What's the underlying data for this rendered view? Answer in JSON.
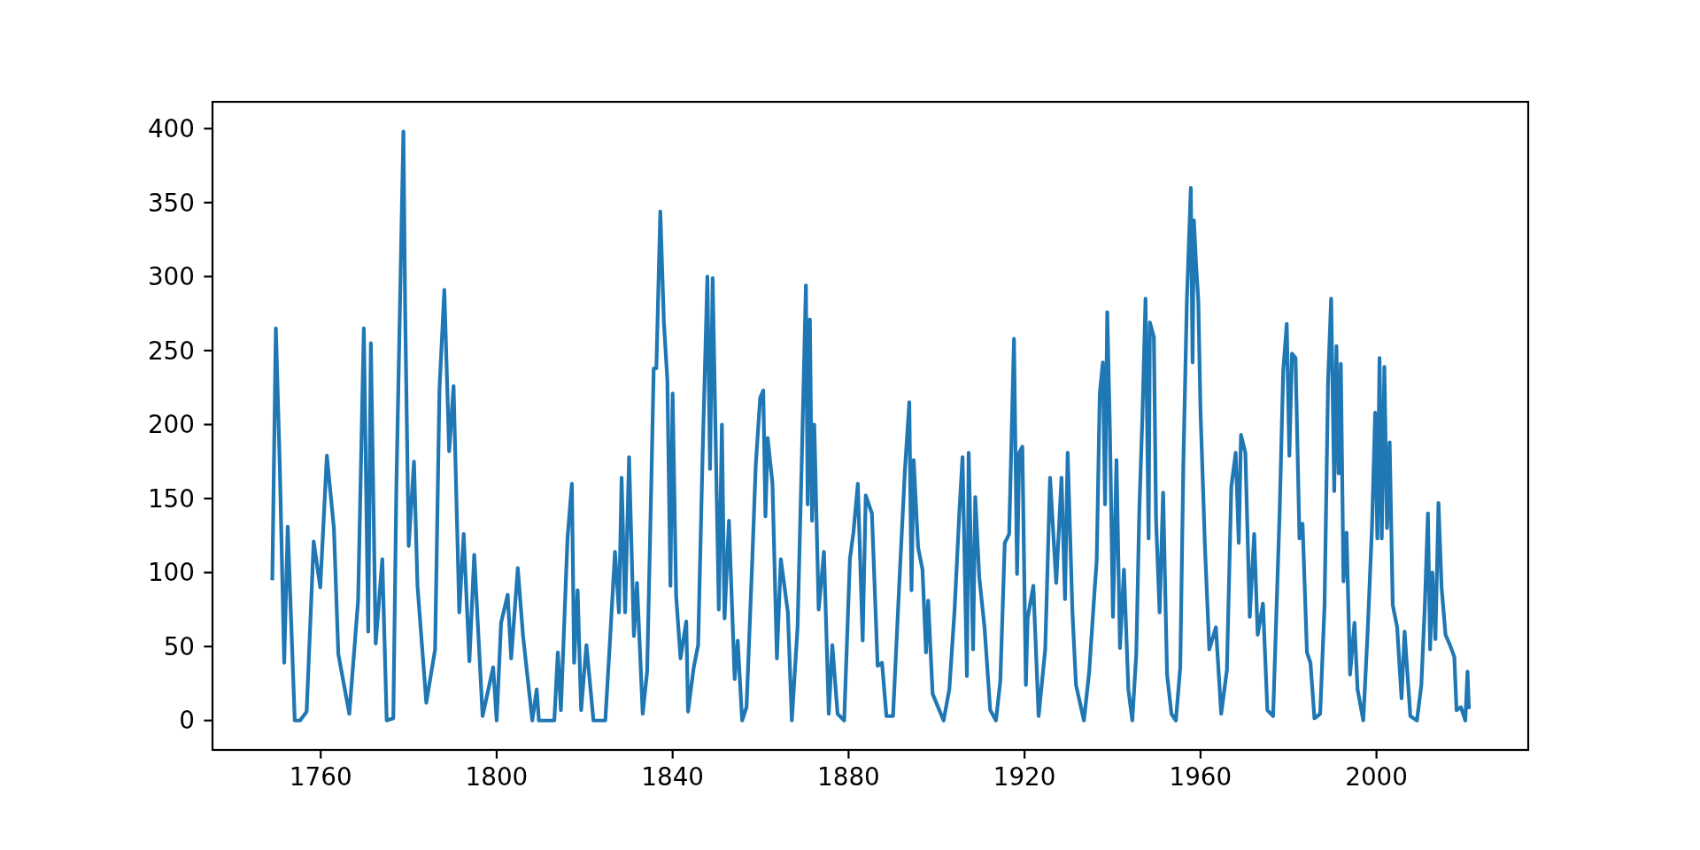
{
  "chart_data": {
    "type": "line",
    "x": [
      1749.0,
      1749.8,
      1750.7,
      1751.7,
      1752.5,
      1754.1,
      1755.3,
      1756.8,
      1758.4,
      1759.9,
      1761.4,
      1763.0,
      1764.0,
      1766.5,
      1768.5,
      1769.8,
      1770.8,
      1771.4,
      1772.5,
      1774.0,
      1775.0,
      1776.5,
      1777.2,
      1778.8,
      1779.2,
      1780.0,
      1781.2,
      1782.0,
      1784.0,
      1786.0,
      1787.0,
      1788.1,
      1789.2,
      1790.2,
      1791.5,
      1792.5,
      1793.8,
      1794.9,
      1796.8,
      1799.2,
      1800.0,
      1801.0,
      1802.5,
      1803.3,
      1804.8,
      1806.0,
      1808.1,
      1809.1,
      1809.6,
      1813.1,
      1813.9,
      1814.6,
      1816.1,
      1817.1,
      1817.6,
      1818.4,
      1819.2,
      1820.4,
      1822.0,
      1824.7,
      1825.7,
      1826.9,
      1827.8,
      1828.4,
      1829.2,
      1830.1,
      1831.2,
      1831.9,
      1833.2,
      1834.2,
      1835.2,
      1835.7,
      1836.3,
      1837.2,
      1838.0,
      1838.8,
      1839.5,
      1840.0,
      1840.8,
      1841.8,
      1843.1,
      1843.5,
      1844.8,
      1845.8,
      1846.8,
      1847.9,
      1848.5,
      1849.1,
      1850.5,
      1851.2,
      1851.8,
      1852.8,
      1854.1,
      1854.8,
      1855.8,
      1856.8,
      1858.1,
      1858.9,
      1859.9,
      1860.6,
      1861.1,
      1861.6,
      1862.7,
      1863.7,
      1864.6,
      1866.2,
      1867.1,
      1868.4,
      1869.4,
      1870.3,
      1870.7,
      1871.2,
      1871.7,
      1872.2,
      1873.2,
      1874.4,
      1875.5,
      1876.3,
      1877.5,
      1879.0,
      1880.3,
      1881.1,
      1882.1,
      1883.2,
      1883.9,
      1885.3,
      1886.6,
      1887.6,
      1888.6,
      1890.1,
      1891.6,
      1892.8,
      1893.8,
      1894.3,
      1894.8,
      1895.8,
      1896.8,
      1897.6,
      1898.1,
      1899.1,
      1901.6,
      1902.9,
      1904.1,
      1905.2,
      1905.9,
      1906.9,
      1907.3,
      1908.3,
      1908.8,
      1909.7,
      1910.9,
      1912.2,
      1913.5,
      1914.5,
      1915.5,
      1916.5,
      1917.6,
      1918.3,
      1918.8,
      1919.5,
      1920.3,
      1920.7,
      1922.0,
      1923.2,
      1924.7,
      1925.8,
      1927.2,
      1928.4,
      1929.2,
      1929.8,
      1930.9,
      1931.7,
      1933.5,
      1934.7,
      1935.9,
      1936.4,
      1937.1,
      1937.8,
      1938.3,
      1938.8,
      1939.4,
      1940.1,
      1940.9,
      1941.7,
      1942.6,
      1943.6,
      1944.5,
      1945.4,
      1946.1,
      1946.8,
      1947.5,
      1948.2,
      1948.5,
      1949.4,
      1949.9,
      1950.7,
      1951.5,
      1952.4,
      1953.4,
      1954.4,
      1955.4,
      1956.1,
      1956.9,
      1957.8,
      1958.2,
      1958.5,
      1959.0,
      1959.5,
      1960.0,
      1961.0,
      1962.0,
      1963.5,
      1964.7,
      1966.0,
      1967.0,
      1968.0,
      1968.7,
      1969.2,
      1970.2,
      1971.2,
      1972.2,
      1973.0,
      1974.2,
      1975.2,
      1976.5,
      1978.0,
      1978.8,
      1979.6,
      1980.2,
      1980.8,
      1981.6,
      1982.5,
      1983.2,
      1984.2,
      1985.0,
      1985.9,
      1987.2,
      1988.2,
      1989.0,
      1989.7,
      1990.4,
      1990.9,
      1991.4,
      1991.9,
      1992.5,
      1993.2,
      1994.0,
      1995.0,
      1995.7,
      1997.0,
      1998.0,
      1999.0,
      1999.7,
      2000.2,
      2000.7,
      2001.2,
      2001.8,
      2002.4,
      2003.0,
      2003.7,
      2004.7,
      2005.7,
      2006.4,
      2007.7,
      2009.2,
      2010.2,
      2011.0,
      2011.7,
      2012.2,
      2012.7,
      2013.4,
      2014.1,
      2014.8,
      2015.7,
      2016.7,
      2017.7,
      2018.2,
      2019.2,
      2020.2,
      2020.7,
      2021.0
    ],
    "series": [
      {
        "color": "#1f77b4",
        "values": [
          96,
          265,
          172,
          39,
          131,
          0,
          0,
          6,
          121,
          90,
          179,
          130,
          45,
          4.5,
          81,
          265,
          60,
          255,
          52,
          109,
          0,
          1.5,
          158,
          398,
          276,
          118,
          175,
          91,
          12,
          48,
          224,
          291,
          182,
          226,
          73,
          126,
          40,
          112,
          3,
          36,
          0,
          66,
          85,
          42,
          103,
          57,
          0,
          21,
          0,
          0,
          46,
          7,
          123,
          160,
          39,
          88,
          7,
          51,
          0,
          0,
          51,
          114,
          73,
          164,
          73,
          178,
          57,
          93,
          4.5,
          33,
          167,
          238,
          238,
          344,
          270,
          230,
          91,
          221,
          84,
          42,
          67,
          6,
          36,
          51,
          178,
          300,
          170,
          299,
          75,
          200,
          69,
          135,
          28,
          54,
          0,
          9,
          108,
          173,
          218,
          223,
          138,
          191,
          160,
          42,
          109,
          73,
          0,
          63,
          181,
          294,
          146,
          271,
          135,
          200,
          75,
          114,
          4.5,
          51,
          4.5,
          0,
          109,
          127,
          160,
          54,
          152,
          140,
          37,
          39,
          3,
          3,
          97,
          169,
          215,
          88,
          176,
          117,
          102,
          46,
          81,
          18,
          0,
          21,
          75,
          142,
          178,
          30,
          181,
          48,
          151,
          97,
          63,
          7,
          0,
          27,
          120,
          126,
          258,
          99,
          181,
          185,
          24,
          69,
          91,
          3,
          48,
          164,
          93,
          164,
          82,
          181,
          72,
          24,
          0,
          33,
          87,
          108,
          221,
          242,
          146,
          276,
          197,
          70,
          176,
          49,
          102,
          21,
          0,
          45,
          143,
          206,
          285,
          123,
          269,
          259,
          135,
          73,
          154,
          31,
          4.5,
          0,
          36,
          173,
          284,
          360,
          242,
          338,
          308,
          284,
          209,
          118,
          48,
          63,
          4.5,
          34,
          158,
          181,
          120,
          193,
          181,
          70,
          126,
          58,
          79,
          7,
          3,
          142,
          236,
          268,
          179,
          248,
          245,
          123,
          133,
          46,
          39,
          1.5,
          4.5,
          78,
          230,
          285,
          155,
          253,
          167,
          241,
          94,
          127,
          31,
          66,
          21,
          0,
          60,
          132,
          208,
          123,
          245,
          123,
          239,
          130,
          188,
          78,
          63,
          15,
          60,
          3,
          0,
          24,
          78,
          140,
          48,
          100,
          55,
          147,
          90,
          58,
          51,
          43,
          7,
          9,
          0,
          33,
          9
        ]
      }
    ],
    "xlim": [
      1735.4,
      2034.5
    ],
    "ylim": [
      -19.9,
      418.1
    ],
    "xticks": [
      1760,
      1800,
      1840,
      1880,
      1920,
      1960,
      2000
    ],
    "yticks": [
      0,
      50,
      100,
      150,
      200,
      250,
      300,
      350,
      400
    ],
    "grid": false
  }
}
